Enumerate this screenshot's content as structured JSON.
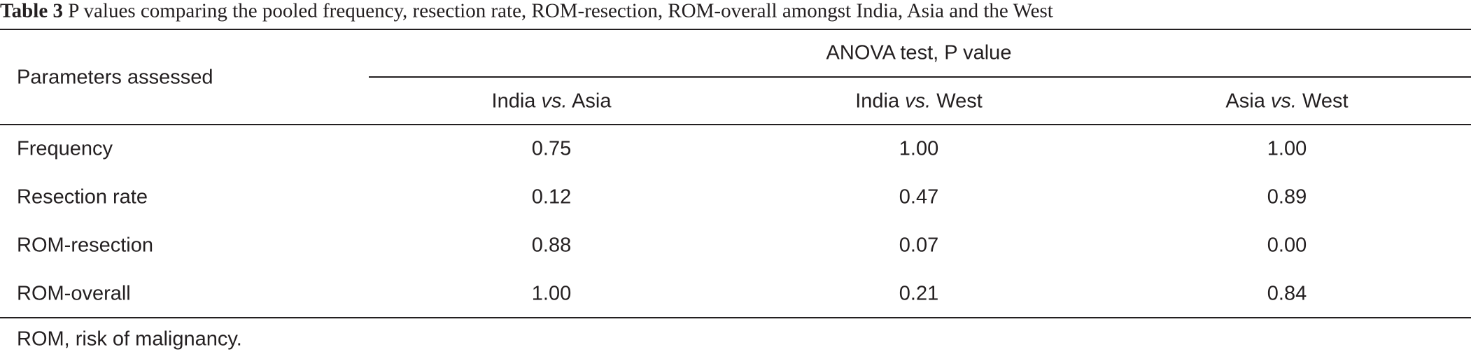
{
  "caption": {
    "label": "Table 3",
    "text": "P values comparing the pooled frequency, resection rate, ROM-resection, ROM-overall amongst India, Asia and the West"
  },
  "table": {
    "row_header": "Parameters assessed",
    "group_header": "ANOVA test, P value",
    "columns": [
      {
        "left": "India",
        "em": "vs.",
        "right": "Asia"
      },
      {
        "left": "India",
        "em": "vs.",
        "right": "West"
      },
      {
        "left": "Asia",
        "em": "vs.",
        "right": "West"
      }
    ],
    "rows": [
      [
        "Frequency",
        "0.75",
        "1.00",
        "1.00"
      ],
      [
        "Resection rate",
        "0.12",
        "0.47",
        "0.89"
      ],
      [
        "ROM-resection",
        "0.88",
        "0.07",
        "0.00"
      ],
      [
        "ROM-overall",
        "1.00",
        "0.21",
        "0.84"
      ]
    ]
  },
  "footnote": "ROM, risk of malignancy."
}
